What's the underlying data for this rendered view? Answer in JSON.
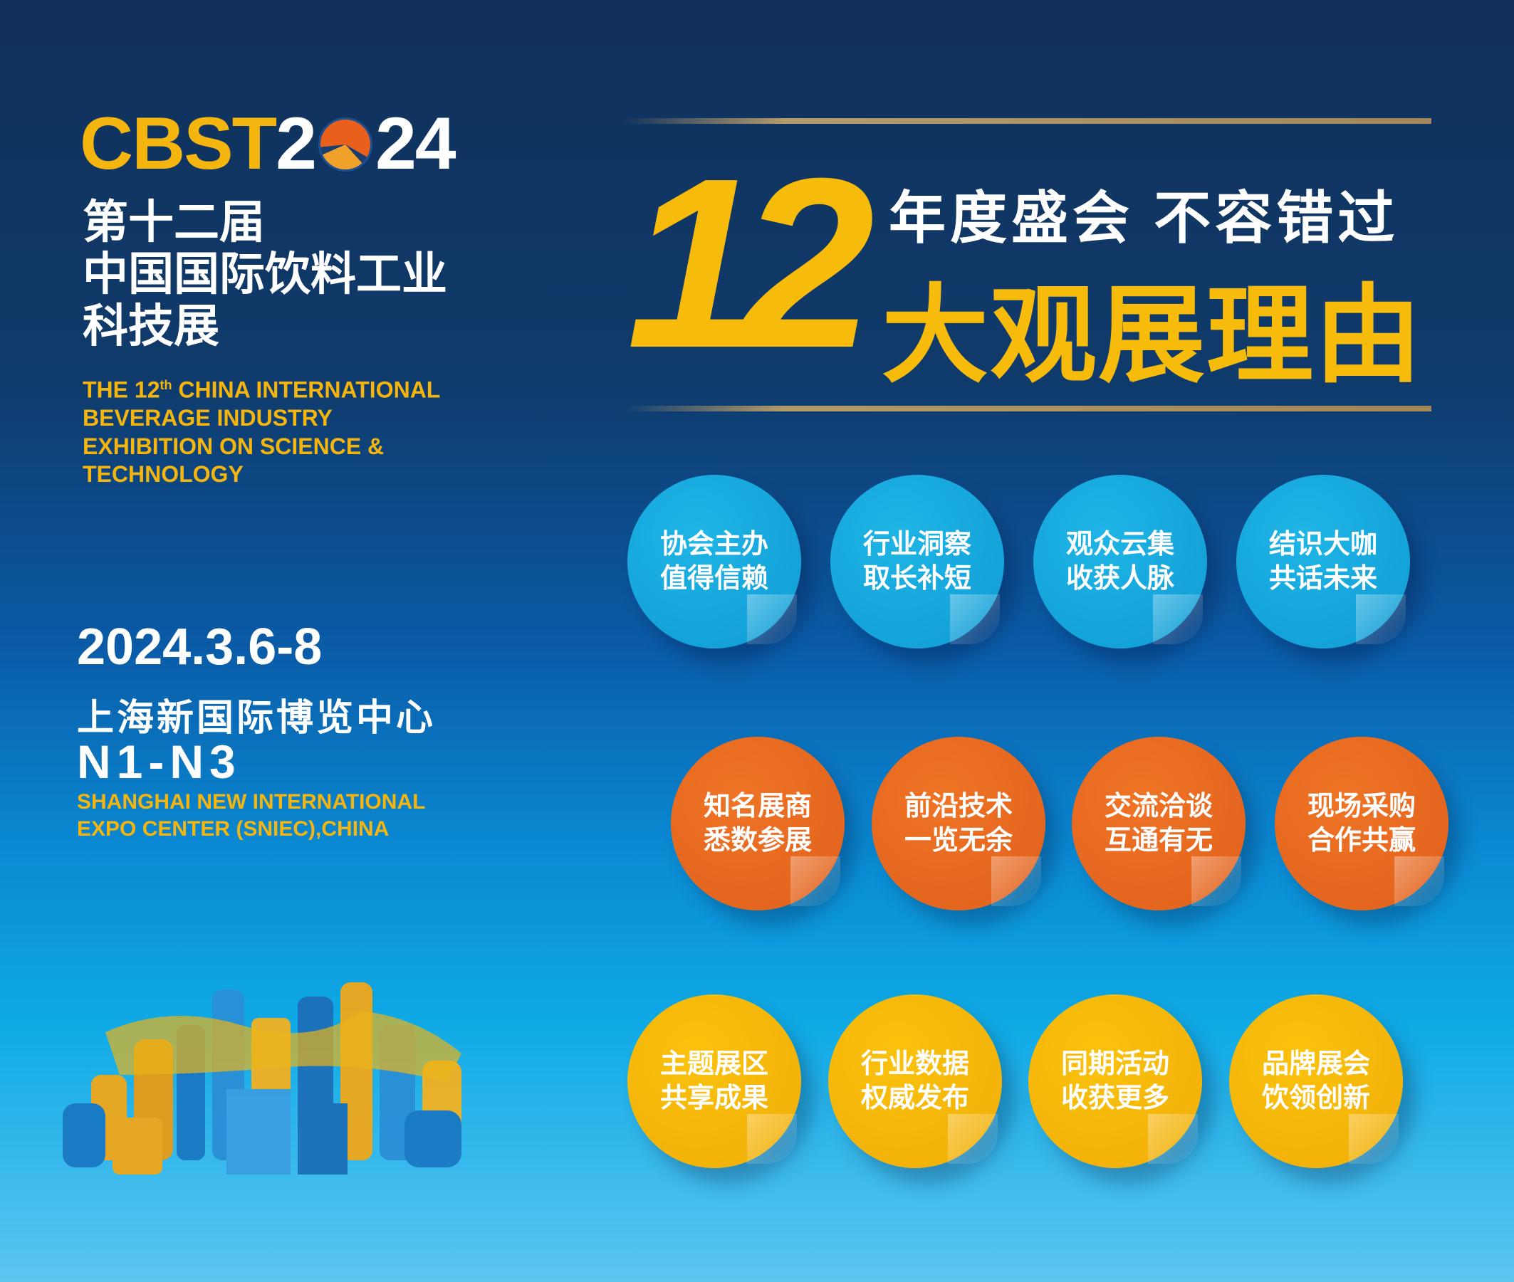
{
  "logo": {
    "cbst": "CBST",
    "year_a": "2",
    "year_b": "24"
  },
  "title_cn": [
    "第十二届",
    "中国国际饮料工业",
    "科技展"
  ],
  "title_en": {
    "pre": "THE 12",
    "sup": "th",
    "post": " CHINA INTERNATIONAL",
    "lines": [
      "BEVERAGE INDUSTRY",
      "EXHIBITION ON SCIENCE &",
      "TECHNOLOGY"
    ]
  },
  "event": {
    "date": "2024.3.6-8",
    "venue_cn": "上海新国际博览中心",
    "halls": "N1-N3",
    "venue_en": [
      "SHANGHAI NEW INTERNATIONAL",
      "EXPO CENTER (SNIEC),CHINA"
    ]
  },
  "headline": {
    "number": "12",
    "slogan": "年度盛会  不容错过",
    "reasons": "大观展理由"
  },
  "colors": {
    "navy": "#11305a",
    "yellow": "#f5b50f",
    "blue_badge": "#0f9bd4",
    "orange_badge": "#e0601c",
    "yellow_badge": "#f0ad0a"
  },
  "badges": [
    [
      "协会主办",
      "值得信赖"
    ],
    [
      "行业洞察",
      "取长补短"
    ],
    [
      "观众云集",
      "收获人脉"
    ],
    [
      "结识大咖",
      "共话未来"
    ],
    [
      "知名展商",
      "悉数参展"
    ],
    [
      "前沿技术",
      "一览无余"
    ],
    [
      "交流洽谈",
      "互通有无"
    ],
    [
      "现场采购",
      "合作共赢"
    ],
    [
      "主题展区",
      "共享成果"
    ],
    [
      "行业数据",
      "权威发布"
    ],
    [
      "同期活动",
      "收获更多"
    ],
    [
      "品牌展会",
      "饮领创新"
    ]
  ]
}
